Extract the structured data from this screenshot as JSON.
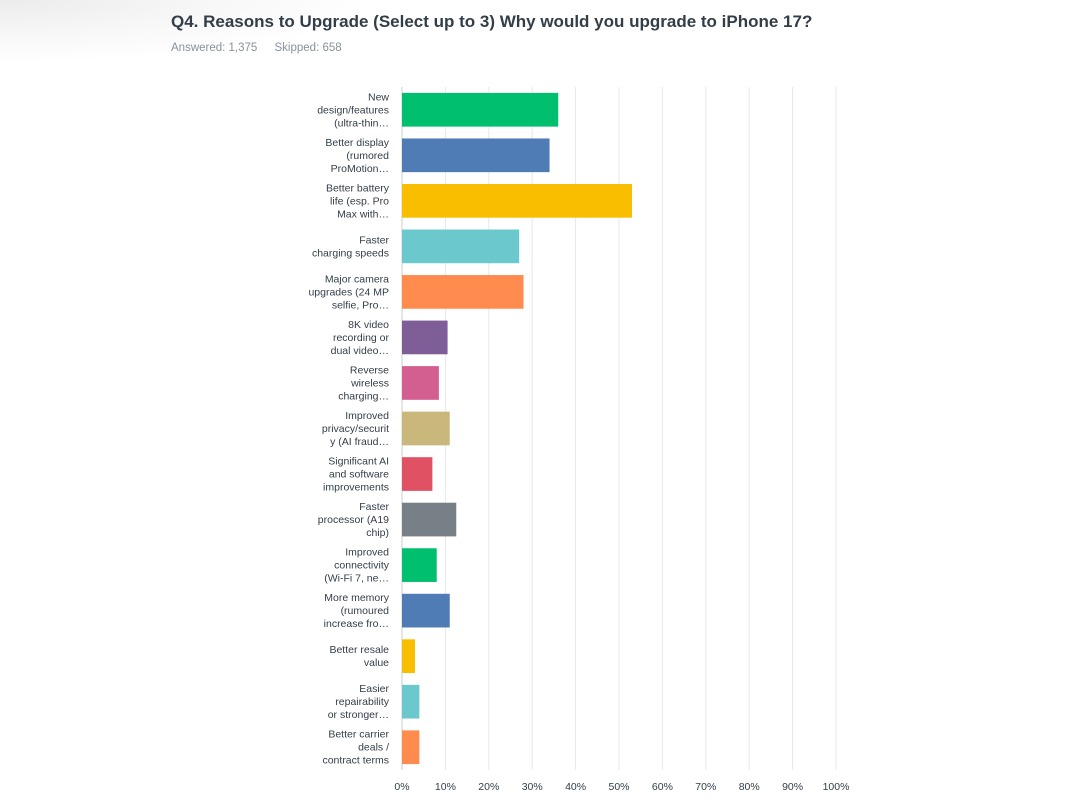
{
  "question": {
    "title": "Q4. Reasons to Upgrade (Select up to 3) Why would you upgrade to iPhone 17?",
    "answered": "Answered: 1,375",
    "skipped": "Skipped: 658"
  },
  "chart_data": {
    "type": "bar",
    "orientation": "horizontal",
    "categories": [
      [
        "New",
        "design/features",
        "(ultra-thin…"
      ],
      [
        "Better display",
        "(rumored",
        "ProMotion…"
      ],
      [
        "Better battery",
        "life (esp. Pro",
        "Max with…"
      ],
      [
        "Faster",
        "charging speeds"
      ],
      [
        "Major camera",
        "upgrades (24 MP",
        "selfie, Pro…"
      ],
      [
        "8K video",
        "recording or",
        "dual video…"
      ],
      [
        "Reverse",
        "wireless",
        "charging…"
      ],
      [
        "Improved",
        "privacy/securit",
        "y (AI fraud…"
      ],
      [
        "Significant AI",
        "and software",
        "improvements"
      ],
      [
        "Faster",
        "processor (A19",
        "chip)"
      ],
      [
        "Improved",
        "connectivity",
        "(Wi-Fi 7, ne…"
      ],
      [
        "More memory",
        "(rumoured",
        "increase fro…"
      ],
      [
        "Better resale",
        "value"
      ],
      [
        "Easier",
        "repairability",
        "or stronger…"
      ],
      [
        "Better carrier",
        "deals /",
        "contract terms"
      ]
    ],
    "values": [
      36,
      34,
      53,
      27,
      28,
      10.5,
      8.5,
      11,
      7,
      12.5,
      8,
      11,
      3,
      4,
      4
    ],
    "colors": [
      "#00bf6f",
      "#507cb6",
      "#f9be00",
      "#6bc8cd",
      "#ff8b4f",
      "#7f5d97",
      "#d25f90",
      "#c9b77b",
      "#e05263",
      "#768086",
      "#00bf6f",
      "#507cb6",
      "#f9be00",
      "#6bc8cd",
      "#ff8b4f"
    ],
    "xlim": [
      0,
      100
    ],
    "xticks": [
      "0%",
      "10%",
      "20%",
      "30%",
      "40%",
      "50%",
      "60%",
      "70%",
      "80%",
      "90%",
      "100%"
    ],
    "grid": true
  }
}
